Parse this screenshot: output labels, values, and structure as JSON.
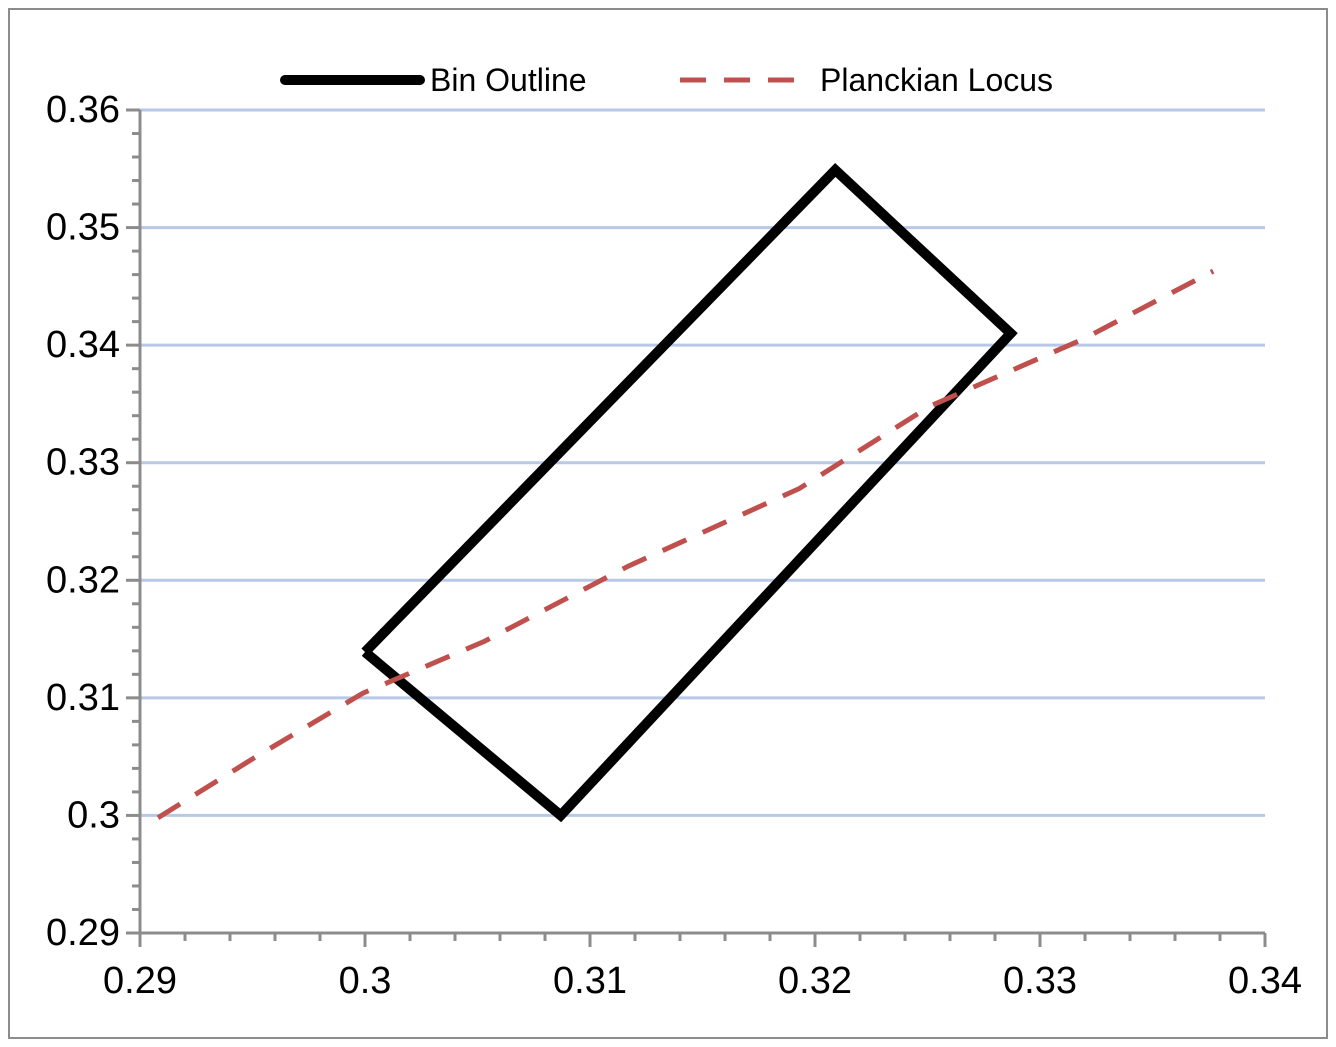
{
  "chart_data": {
    "type": "line",
    "title": "",
    "xlabel": "",
    "ylabel": "",
    "xlim": [
      0.29,
      0.34
    ],
    "ylim": [
      0.29,
      0.36
    ],
    "x_ticks": [
      "0.29",
      "0.3",
      "0.31",
      "0.32",
      "0.33",
      "0.34"
    ],
    "y_ticks": [
      "0.29",
      "0.3",
      "0.31",
      "0.32",
      "0.33",
      "0.34",
      "0.35",
      "0.36"
    ],
    "grid": {
      "horizontal": true,
      "vertical": false
    },
    "legend_position": "top",
    "series": [
      {
        "name": "Bin Outline",
        "style": "solid",
        "color": "#000000",
        "points": [
          {
            "x": 0.3,
            "y": 0.3139
          },
          {
            "x": 0.3209,
            "y": 0.3549
          },
          {
            "x": 0.3287,
            "y": 0.341
          },
          {
            "x": 0.3087,
            "y": 0.3
          },
          {
            "x": 0.3,
            "y": 0.3139
          }
        ]
      },
      {
        "name": "Planckian Locus",
        "style": "dashed",
        "color": "#c0504d",
        "points": [
          {
            "x": 0.2908,
            "y": 0.2998
          },
          {
            "x": 0.2949,
            "y": 0.3047
          },
          {
            "x": 0.2999,
            "y": 0.3104
          },
          {
            "x": 0.3053,
            "y": 0.3148
          },
          {
            "x": 0.3117,
            "y": 0.3212
          },
          {
            "x": 0.3193,
            "y": 0.3278
          },
          {
            "x": 0.3251,
            "y": 0.3348
          },
          {
            "x": 0.3319,
            "y": 0.3405
          },
          {
            "x": 0.3377,
            "y": 0.3463
          }
        ]
      }
    ]
  }
}
